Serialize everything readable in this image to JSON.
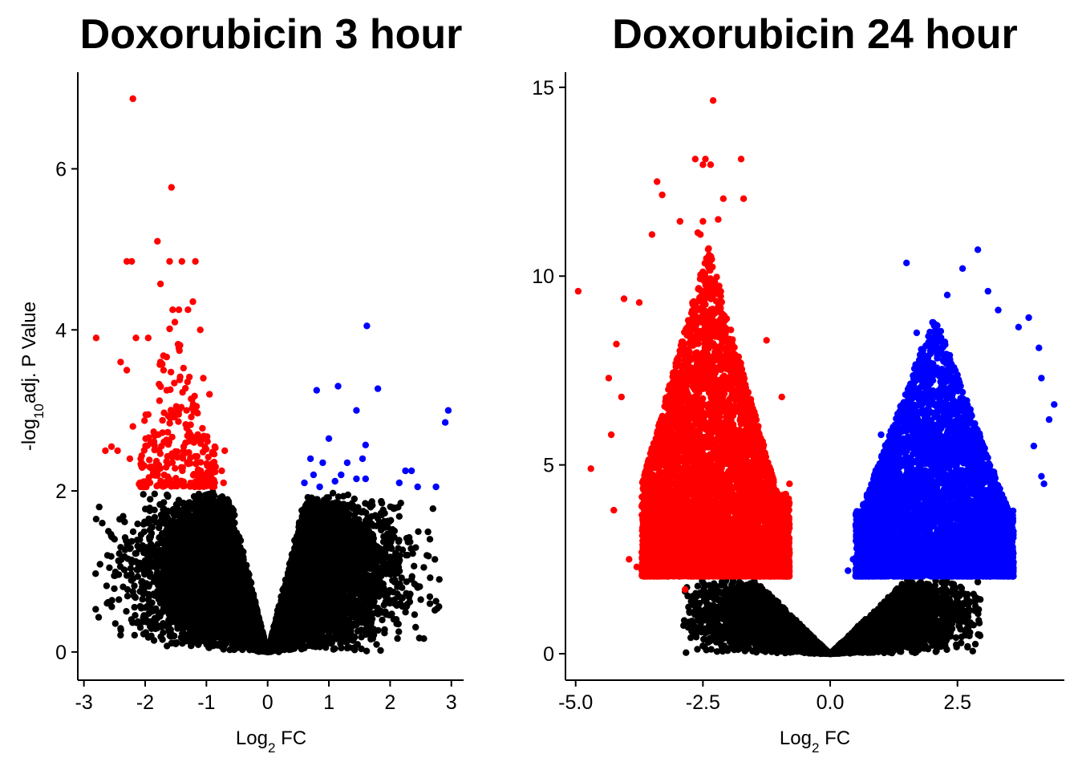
{
  "colors": {
    "down": "#ff0000",
    "up": "#0000ff",
    "ns": "#000000"
  },
  "chart_data": [
    {
      "type": "scatter",
      "title": "Doxorubicin 3 hour",
      "xlabel": {
        "main": "Log",
        "sub": "2",
        "rest": " FC"
      },
      "ylabel": {
        "pre": "-log",
        "sub": "10",
        "rest": "adj. P Value"
      },
      "xlim": [
        -3.1,
        3.2
      ],
      "ylim": [
        -0.35,
        7.2
      ],
      "xticks": [
        -3,
        -2,
        -1,
        0,
        1,
        2,
        3
      ],
      "xtick_labels": [
        "-3",
        "-2",
        "-1",
        "0",
        "1",
        "2",
        "3"
      ],
      "yticks": [
        0,
        2,
        4,
        6
      ],
      "ytick_labels": [
        "0",
        "2",
        "4",
        "6"
      ],
      "significance_threshold": 2,
      "series": [
        {
          "category": "down",
          "color": "#ff0000",
          "points": [
            [
              -2.2,
              6.87
            ],
            [
              -1.57,
              5.77
            ],
            [
              -1.8,
              5.1
            ],
            [
              -2.3,
              4.85
            ],
            [
              -2.22,
              4.85
            ],
            [
              -1.6,
              4.85
            ],
            [
              -1.4,
              4.85
            ],
            [
              -1.18,
              4.85
            ],
            [
              -1.75,
              4.57
            ],
            [
              -1.55,
              4.25
            ],
            [
              -1.45,
              4.25
            ],
            [
              -1.3,
              4.25
            ],
            [
              -1.22,
              4.35
            ],
            [
              -2.8,
              3.9
            ],
            [
              -2.15,
              3.9
            ],
            [
              -1.95,
              3.9
            ],
            [
              -1.1,
              4.0
            ],
            [
              -2.4,
              3.6
            ],
            [
              -2.3,
              3.5
            ],
            [
              -1.7,
              3.5
            ],
            [
              -1.05,
              3.4
            ],
            [
              -0.95,
              3.2
            ],
            [
              -2.55,
              2.55
            ],
            [
              -2.65,
              2.5
            ],
            [
              -2.45,
              2.5
            ],
            [
              -2.2,
              2.8
            ],
            [
              -2.25,
              2.4
            ],
            [
              -1.9,
              2.3
            ],
            [
              -0.85,
              2.3
            ],
            [
              -0.7,
              2.5
            ],
            [
              -0.72,
              2.1
            ],
            [
              -0.75,
              2.25
            ]
          ],
          "cluster": {
            "x_range": [
              -2.1,
              -0.85
            ],
            "y_range": [
              2.05,
              4.2
            ],
            "count": 260,
            "seed": 11
          }
        },
        {
          "category": "up",
          "color": "#0000ff",
          "points": [
            [
              1.62,
              4.05
            ],
            [
              0.8,
              3.25
            ],
            [
              1.15,
              3.3
            ],
            [
              1.8,
              3.27
            ],
            [
              1.45,
              3.0
            ],
            [
              2.95,
              3.0
            ],
            [
              2.9,
              2.85
            ],
            [
              1.0,
              2.65
            ],
            [
              1.6,
              2.57
            ],
            [
              0.7,
              2.4
            ],
            [
              0.9,
              2.35
            ],
            [
              1.3,
              2.35
            ],
            [
              1.55,
              2.4
            ],
            [
              2.25,
              2.25
            ],
            [
              2.35,
              2.25
            ],
            [
              0.75,
              2.2
            ],
            [
              1.2,
              2.2
            ],
            [
              1.45,
              2.15
            ],
            [
              1.6,
              2.15
            ],
            [
              2.15,
              2.1
            ],
            [
              2.45,
              2.05
            ],
            [
              2.75,
              2.05
            ],
            [
              0.6,
              2.1
            ],
            [
              0.85,
              2.05
            ],
            [
              1.1,
              2.12
            ]
          ]
        },
        {
          "category": "ns",
          "color": "#000000",
          "volcano": {
            "thresholds_neg": [
              -2.85,
              -2.7,
              -2.5
            ],
            "thresholds_pos": [
              2.7,
              2.85
            ],
            "cap": 2.0,
            "count": 14000,
            "seed": 7
          },
          "points": [
            [
              -2.8,
              1.65
            ],
            [
              -2.7,
              1.6
            ],
            [
              -2.6,
              1.5
            ],
            [
              -2.5,
              1.4
            ],
            [
              -2.4,
              1.3
            ],
            [
              -2.75,
              1.8
            ],
            [
              2.7,
              1.78
            ],
            [
              2.65,
              1.4
            ],
            [
              2.6,
              1.2
            ],
            [
              2.55,
              1.05
            ],
            [
              2.75,
              0.63
            ],
            [
              2.65,
              0.6
            ],
            [
              2.45,
              0.8
            ],
            [
              2.35,
              0.9
            ],
            [
              2.5,
              0.65
            ],
            [
              -2.3,
              0.95
            ],
            [
              -2.2,
              0.75
            ],
            [
              -2.0,
              0.55
            ],
            [
              -1.9,
              0.2
            ],
            [
              -1.6,
              0.25
            ],
            [
              -1.5,
              0.1
            ]
          ]
        }
      ]
    },
    {
      "type": "scatter",
      "title": "Doxorubicin 24 hour",
      "xlabel": {
        "main": "Log",
        "sub": "2",
        "rest": " FC"
      },
      "ylabel": null,
      "xlim": [
        -5.2,
        4.6
      ],
      "ylim": [
        -0.7,
        15.4
      ],
      "xticks": [
        -5.0,
        -2.5,
        0.0,
        2.5
      ],
      "xtick_labels": [
        "-5.0",
        "-2.5",
        "0.0",
        "2.5"
      ],
      "yticks": [
        0,
        5,
        10,
        15
      ],
      "ytick_labels": [
        "0",
        "5",
        "10",
        "15"
      ],
      "significance_threshold": 2,
      "series": [
        {
          "category": "down",
          "color": "#ff0000",
          "points": [
            [
              -2.3,
              14.65
            ],
            [
              -2.65,
              13.1
            ],
            [
              -2.45,
              13.1
            ],
            [
              -2.5,
              12.95
            ],
            [
              -2.35,
              12.95
            ],
            [
              -1.75,
              13.1
            ],
            [
              -3.4,
              12.5
            ],
            [
              -3.3,
              12.15
            ],
            [
              -2.1,
              12.05
            ],
            [
              -1.7,
              12.05
            ],
            [
              -3.5,
              11.1
            ],
            [
              -2.2,
              11.5
            ],
            [
              -2.5,
              11.45
            ],
            [
              -2.55,
              11.1
            ],
            [
              -2.6,
              11.15
            ],
            [
              -2.95,
              11.45
            ],
            [
              -4.95,
              9.6
            ],
            [
              -4.05,
              9.4
            ],
            [
              -3.75,
              9.3
            ],
            [
              -4.2,
              8.2
            ],
            [
              -4.35,
              7.3
            ],
            [
              -4.1,
              6.8
            ],
            [
              -4.3,
              5.8
            ],
            [
              -4.7,
              4.9
            ],
            [
              -4.25,
              3.8
            ],
            [
              -3.95,
              2.5
            ],
            [
              -3.8,
              2.3
            ],
            [
              -2.85,
              1.7
            ],
            [
              -1.25,
              8.3
            ],
            [
              -0.95,
              6.8
            ],
            [
              -0.8,
              4.5
            ]
          ],
          "cluster": {
            "x_range": [
              -3.7,
              -0.8
            ],
            "y_range": [
              2.05,
              10.8
            ],
            "count": 6500,
            "seed": 23
          }
        },
        {
          "category": "up",
          "color": "#0000ff",
          "points": [
            [
              2.9,
              10.7
            ],
            [
              2.6,
              10.2
            ],
            [
              1.5,
              10.35
            ],
            [
              2.3,
              9.5
            ],
            [
              3.1,
              9.6
            ],
            [
              3.3,
              9.1
            ],
            [
              3.9,
              8.9
            ],
            [
              3.7,
              8.65
            ],
            [
              4.1,
              8.1
            ],
            [
              4.15,
              7.3
            ],
            [
              4.4,
              6.6
            ],
            [
              4.3,
              6.2
            ],
            [
              4.0,
              5.5
            ],
            [
              4.15,
              4.7
            ],
            [
              4.2,
              4.5
            ],
            [
              3.5,
              3.8
            ],
            [
              3.1,
              2.5
            ],
            [
              3.0,
              2.2
            ],
            [
              2.8,
              2.1
            ],
            [
              0.6,
              3.5
            ],
            [
              0.45,
              2.5
            ],
            [
              0.35,
              2.2
            ],
            [
              1.0,
              5.8
            ],
            [
              1.7,
              8.5
            ]
          ],
          "cluster": {
            "x_range": [
              0.5,
              3.6
            ],
            "y_range": [
              2.05,
              9.0
            ],
            "count": 6000,
            "seed": 31
          }
        },
        {
          "category": "ns",
          "color": "#000000",
          "volcano": {
            "thresholds_neg": [
              -2.9
            ],
            "thresholds_pos": [
              2.95
            ],
            "cap": 2.0,
            "count": 11000,
            "seed": 5
          },
          "points": [
            [
              -2.85,
              1.65
            ],
            [
              -2.7,
              1.3
            ],
            [
              -2.5,
              1.05
            ],
            [
              -2.3,
              0.6
            ],
            [
              -2.1,
              0.5
            ],
            [
              2.9,
              1.9
            ],
            [
              2.85,
              1.5
            ],
            [
              2.7,
              1.3
            ],
            [
              2.55,
              1.2
            ],
            [
              2.45,
              1.05
            ],
            [
              2.3,
              0.8
            ],
            [
              2.1,
              0.75
            ]
          ]
        }
      ]
    }
  ]
}
